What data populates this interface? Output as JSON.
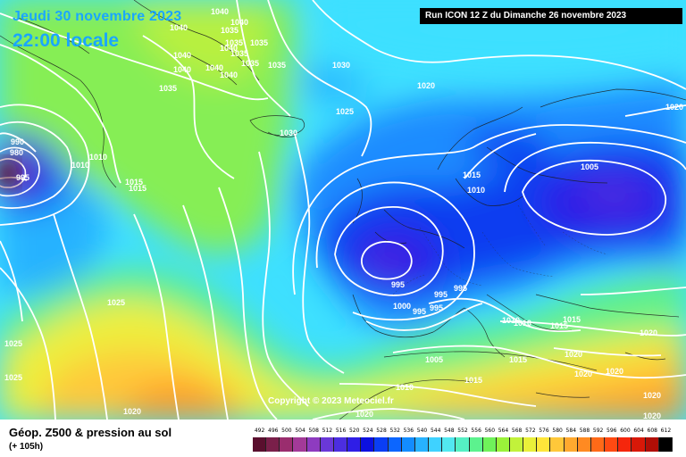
{
  "header": {
    "valid_date": "Jeudi 30 novembre 2023",
    "local_time": "22:00 locale",
    "run_info": "Run ICON 12 Z du Dimanche 26 novembre 2023"
  },
  "map": {
    "copyright": "Copyright © 2023 Meteociel.fr",
    "isobar_labels": [
      "1040",
      "1040",
      "1040",
      "1035",
      "1035",
      "1035",
      "1040",
      "1040",
      "1040",
      "1040",
      "1035",
      "1035",
      "1040",
      "1035",
      "1035",
      "1030",
      "1030",
      "1025",
      "1020",
      "1020",
      "1005",
      "1015",
      "1010",
      "1015",
      "1015",
      "1010",
      "1010",
      "995",
      "990",
      "980",
      "1025",
      "1025",
      "1025",
      "1020",
      "995",
      "995",
      "995",
      "995",
      "1000",
      "995",
      "1010",
      "1010",
      "1015",
      "1015",
      "1020",
      "1020",
      "1005",
      "1010",
      "1015",
      "1020",
      "1020",
      "1020",
      "1015",
      "1020",
      "1020"
    ],
    "colors": {
      "trough": "#0019d8",
      "ridge": "#ff7a08",
      "isobar": "#ffffff"
    }
  },
  "footer": {
    "product": "Géop. Z500 & pression au sol",
    "lead": "(+ 105h)",
    "scale_labels": [
      "492",
      "496",
      "500",
      "504",
      "508",
      "512",
      "516",
      "520",
      "524",
      "528",
      "532",
      "536",
      "540",
      "544",
      "548",
      "552",
      "556",
      "560",
      "564",
      "568",
      "572",
      "576",
      "580",
      "584",
      "588",
      "592",
      "596",
      "600",
      "604",
      "608",
      "612"
    ],
    "scale_colors": [
      "#5a0f2e",
      "#7a1f4a",
      "#9a2d6e",
      "#a33a98",
      "#8e3bc0",
      "#6a38d8",
      "#4c2ee0",
      "#2f1ee6",
      "#0c10e0",
      "#0a3ef4",
      "#0c66ff",
      "#138cff",
      "#27b2ff",
      "#3fd2ff",
      "#52e8f0",
      "#55f0c4",
      "#5cf28e",
      "#6ff25a",
      "#9af23a",
      "#c2f23a",
      "#e9f03a",
      "#ffe63a",
      "#ffc83a",
      "#ffa92f",
      "#ff8a22",
      "#ff6a18",
      "#ff4a12",
      "#f5260c",
      "#d81808",
      "#b00e06",
      "#000000"
    ]
  }
}
